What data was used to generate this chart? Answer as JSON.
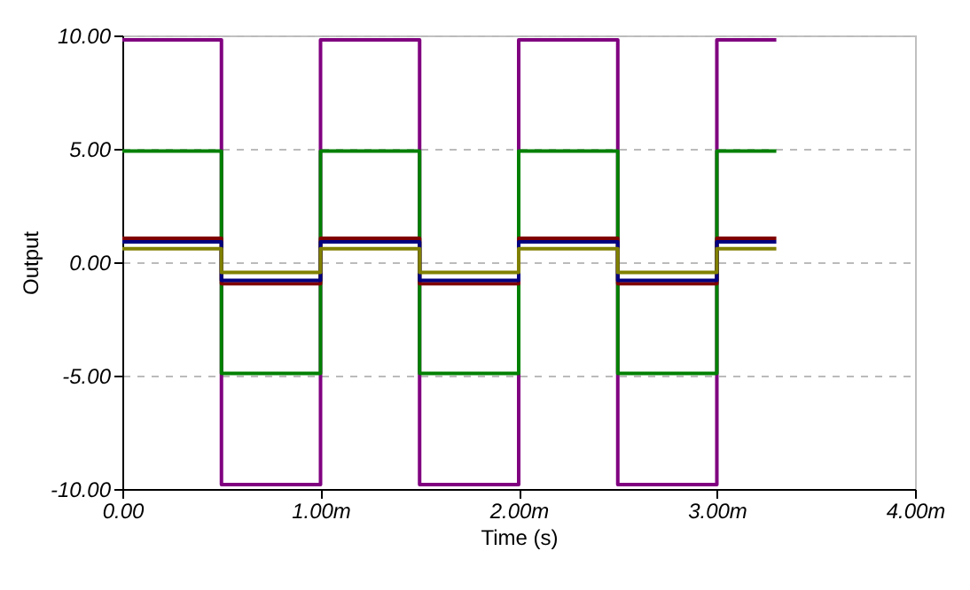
{
  "chart_data": {
    "type": "line",
    "xlabel": "Time (s)",
    "ylabel": "Output",
    "x": [
      0,
      0.5,
      0.5,
      1,
      1,
      1.5,
      1.5,
      2,
      2,
      2.5,
      2.5,
      3,
      3,
      3.3
    ],
    "series": [
      {
        "color": "#800080",
        "values": [
          9.8,
          9.8,
          -9.8,
          -9.8,
          9.8,
          9.8,
          -9.8,
          -9.8,
          9.8,
          9.8,
          -9.8,
          -9.8,
          9.8,
          9.8
        ]
      },
      {
        "color": "#008000",
        "values": [
          4.9,
          4.9,
          -4.9,
          -4.9,
          4.9,
          4.9,
          -4.9,
          -4.9,
          4.9,
          4.9,
          -4.9,
          -4.9,
          4.9,
          4.9
        ]
      },
      {
        "color": "#800000",
        "values": [
          1.05,
          1.05,
          -0.95,
          -0.95,
          1.05,
          1.05,
          -0.95,
          -0.95,
          1.05,
          1.05,
          -0.95,
          -0.95,
          1.05,
          1.05
        ]
      },
      {
        "color": "#000080",
        "values": [
          0.9,
          0.9,
          -0.8,
          -0.8,
          0.9,
          0.9,
          -0.8,
          -0.8,
          0.9,
          0.9,
          -0.8,
          -0.8,
          0.9,
          0.9
        ]
      },
      {
        "color": "#808000",
        "values": [
          0.6,
          0.6,
          -0.45,
          -0.45,
          0.6,
          0.6,
          -0.45,
          -0.45,
          0.6,
          0.6,
          -0.45,
          -0.45,
          0.6,
          0.6
        ]
      }
    ],
    "xlim": [
      0,
      4
    ],
    "xticks": [
      {
        "value": 0,
        "label": "0.00"
      },
      {
        "value": 1,
        "label": "1.00m"
      },
      {
        "value": 2,
        "label": "2.00m"
      },
      {
        "value": 3,
        "label": "3.00m"
      },
      {
        "value": 4,
        "label": "4.00m"
      }
    ],
    "ylim": [
      -10,
      10
    ],
    "yticks": [
      {
        "value": -10,
        "label": "-10.00"
      },
      {
        "value": -5,
        "label": "-5.00"
      },
      {
        "value": 0,
        "label": "0.00"
      },
      {
        "value": 5,
        "label": "5.00"
      },
      {
        "value": 10,
        "label": "10.00"
      }
    ],
    "grid": "y",
    "line_style": "solid"
  }
}
